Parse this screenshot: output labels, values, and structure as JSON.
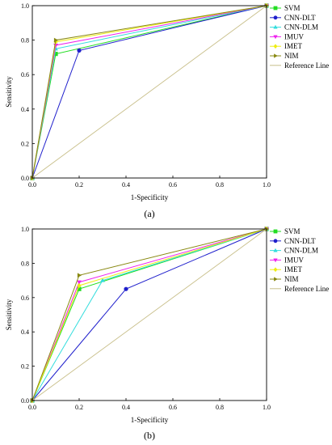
{
  "chart_data": [
    {
      "type": "line",
      "panel_label": "(a)",
      "xlabel": "1-Specificity",
      "ylabel": "Sensitivity",
      "xlim": [
        0,
        1
      ],
      "ylim": [
        0,
        1
      ],
      "xticks": [
        "0.0",
        "0.2",
        "0.4",
        "0.6",
        "0.8",
        "1.0"
      ],
      "yticks": [
        "0.0",
        "0.2",
        "0.4",
        "0.6",
        "0.8",
        "1.0"
      ],
      "grid": false,
      "legend_position": "top-right",
      "series": [
        {
          "name": "SVM",
          "color": "#22dd22",
          "marker": "square",
          "x": [
            0,
            0.1,
            1
          ],
          "y": [
            0,
            0.72,
            1
          ]
        },
        {
          "name": "CNN-DLT",
          "color": "#1f1fcc",
          "marker": "circle",
          "x": [
            0,
            0.2,
            1
          ],
          "y": [
            0,
            0.74,
            1
          ]
        },
        {
          "name": "CNN-DLM",
          "color": "#33dddd",
          "marker": "triangle-up",
          "x": [
            0,
            0.1,
            1
          ],
          "y": [
            0,
            0.75,
            1
          ]
        },
        {
          "name": "IMUV",
          "color": "#ee22ee",
          "marker": "triangle-down",
          "x": [
            0,
            0.1,
            1
          ],
          "y": [
            0,
            0.77,
            1
          ]
        },
        {
          "name": "IMET",
          "color": "#eeee11",
          "marker": "diamond",
          "x": [
            0,
            0.1,
            1
          ],
          "y": [
            0,
            0.79,
            1
          ]
        },
        {
          "name": "NIM",
          "color": "#888811",
          "marker": "triangle-right",
          "x": [
            0,
            0.1,
            1
          ],
          "y": [
            0,
            0.8,
            1
          ]
        },
        {
          "name": "Reference Line",
          "color": "#c8bf8a",
          "marker": "none",
          "x": [
            0,
            1
          ],
          "y": [
            0,
            1
          ]
        }
      ]
    },
    {
      "type": "line",
      "panel_label": "(b)",
      "xlabel": "1-Specificity",
      "ylabel": "Sensitivity",
      "xlim": [
        0,
        1
      ],
      "ylim": [
        0,
        1
      ],
      "xticks": [
        "0.0",
        "0.2",
        "0.4",
        "0.6",
        "0.8",
        "1.0"
      ],
      "yticks": [
        "0.0",
        "0.2",
        "0.4",
        "0.6",
        "0.8",
        "1.0"
      ],
      "grid": false,
      "legend_position": "top-right",
      "series": [
        {
          "name": "SVM",
          "color": "#22dd22",
          "marker": "square",
          "x": [
            0,
            0.2,
            1
          ],
          "y": [
            0,
            0.65,
            1
          ]
        },
        {
          "name": "CNN-DLT",
          "color": "#1f1fcc",
          "marker": "circle",
          "x": [
            0,
            0.4,
            1
          ],
          "y": [
            0,
            0.65,
            1
          ]
        },
        {
          "name": "CNN-DLM",
          "color": "#33dddd",
          "marker": "triangle-up",
          "x": [
            0,
            0.3,
            1
          ],
          "y": [
            0,
            0.7,
            1
          ]
        },
        {
          "name": "IMUV",
          "color": "#ee22ee",
          "marker": "triangle-down",
          "x": [
            0,
            0.2,
            1
          ],
          "y": [
            0,
            0.69,
            1
          ]
        },
        {
          "name": "IMET",
          "color": "#eeee11",
          "marker": "diamond",
          "x": [
            0,
            0.2,
            1
          ],
          "y": [
            0,
            0.67,
            1
          ]
        },
        {
          "name": "NIM",
          "color": "#888811",
          "marker": "triangle-right",
          "x": [
            0,
            0.2,
            1
          ],
          "y": [
            0,
            0.73,
            1
          ]
        },
        {
          "name": "Reference Line",
          "color": "#c8bf8a",
          "marker": "none",
          "x": [
            0,
            1
          ],
          "y": [
            0,
            1
          ]
        }
      ]
    }
  ]
}
